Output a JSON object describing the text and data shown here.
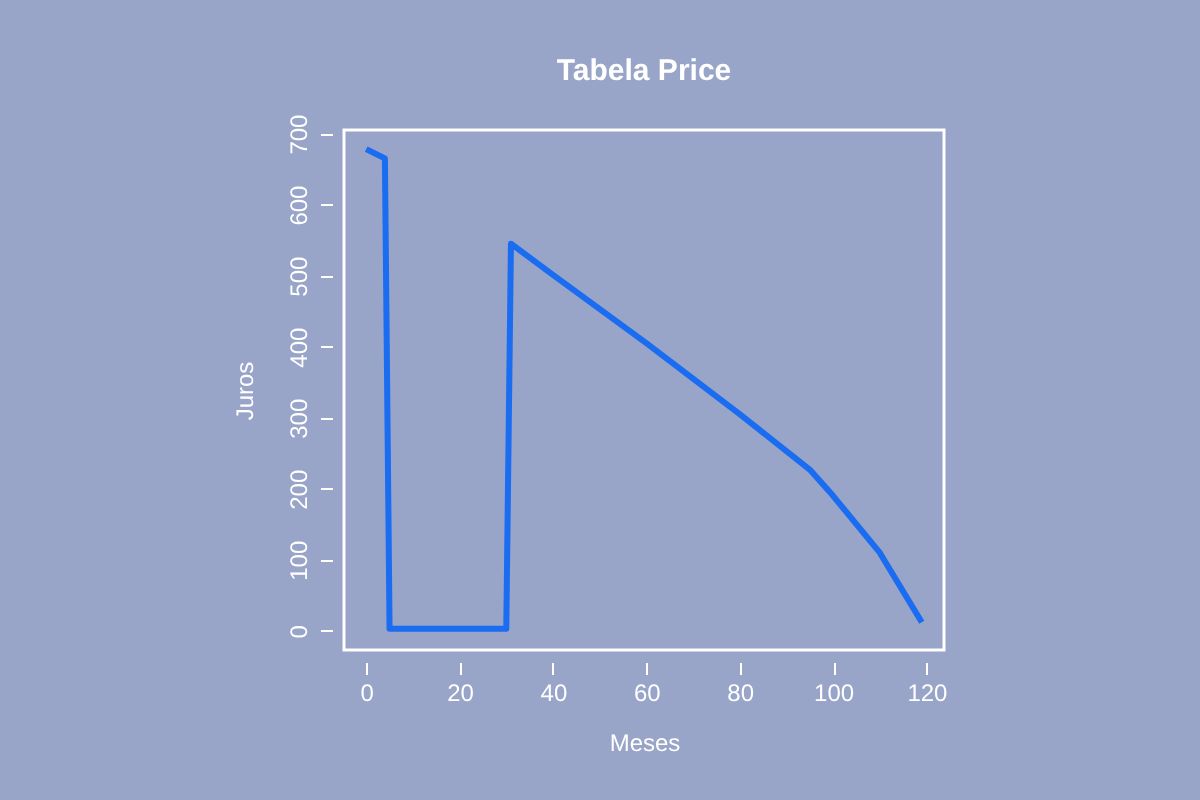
{
  "chart_data": {
    "type": "line",
    "title": "Tabela Price",
    "xlabel": "Meses",
    "ylabel": "Juros",
    "x": [
      0,
      4,
      5,
      30,
      31,
      40,
      60,
      80,
      95,
      100,
      110,
      119
    ],
    "series": [
      {
        "color": "#1a6cf0",
        "values": [
          678,
          665,
          3,
          3,
          545,
          501,
          405,
          305,
          227,
          190,
          110,
          12
        ]
      }
    ],
    "xlim": [
      -4.76,
      123.76
    ],
    "ylim": [
      -27,
      705
    ],
    "xticks": [
      0,
      20,
      40,
      60,
      80,
      100,
      120
    ],
    "yticks": [
      0,
      100,
      200,
      300,
      400,
      500,
      600,
      700
    ],
    "grid": false,
    "legend": false,
    "marker": "none",
    "line_style": "solid"
  }
}
